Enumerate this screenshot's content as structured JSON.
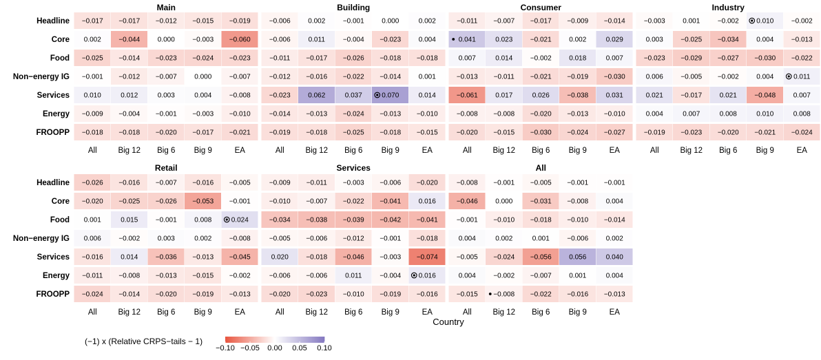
{
  "chart_data": {
    "type": "heatmap",
    "xlabel": "Country",
    "rows": [
      "Headline",
      "Core",
      "Food",
      "Non−energy IG",
      "Services",
      "Energy",
      "FROOPP"
    ],
    "columns": [
      "All",
      "Big 12",
      "Big 6",
      "Big 9",
      "EA"
    ],
    "panels": [
      {
        "title": "Main",
        "values": [
          [
            "−0.017",
            "−0.017",
            "−0.012",
            "−0.015",
            "−0.019"
          ],
          [
            "0.002",
            "−0.044",
            "0.000",
            "−0.003",
            "−0.060"
          ],
          [
            "−0.025",
            "−0.014",
            "−0.023",
            "−0.024",
            "−0.023"
          ],
          [
            "−0.001",
            "−0.012",
            "−0.007",
            "0.000",
            "−0.007"
          ],
          [
            "0.010",
            "0.012",
            "0.003",
            "0.004",
            "−0.008"
          ],
          [
            "−0.009",
            "−0.004",
            "−0.001",
            "−0.003",
            "−0.010"
          ],
          [
            "−0.018",
            "−0.018",
            "−0.020",
            "−0.017",
            "−0.021"
          ]
        ],
        "marks": []
      },
      {
        "title": "Building",
        "values": [
          [
            "−0.006",
            "0.002",
            "−0.001",
            "0.000",
            "0.002"
          ],
          [
            "−0.006",
            "0.011",
            "−0.004",
            "−0.023",
            "0.004"
          ],
          [
            "−0.011",
            "−0.017",
            "−0.026",
            "−0.018",
            "−0.018"
          ],
          [
            "−0.012",
            "−0.016",
            "−0.022",
            "−0.014",
            "0.001"
          ],
          [
            "−0.023",
            "0.062",
            "0.037",
            "0.070",
            "0.014"
          ],
          [
            "−0.014",
            "−0.013",
            "−0.024",
            "−0.013",
            "−0.010"
          ],
          [
            "−0.019",
            "−0.018",
            "−0.025",
            "−0.018",
            "−0.015"
          ]
        ],
        "marks": [
          {
            "row": 4,
            "col": 3,
            "symbol": "ring"
          }
        ]
      },
      {
        "title": "Consumer",
        "values": [
          [
            "−0.011",
            "−0.007",
            "−0.017",
            "−0.009",
            "−0.014"
          ],
          [
            "0.041",
            "0.023",
            "−0.021",
            "0.002",
            "0.029"
          ],
          [
            "0.007",
            "0.014",
            "−0.002",
            "0.018",
            "0.007"
          ],
          [
            "−0.013",
            "−0.011",
            "−0.021",
            "−0.019",
            "−0.030"
          ],
          [
            "−0.061",
            "0.017",
            "0.026",
            "−0.038",
            "0.031"
          ],
          [
            "−0.008",
            "−0.008",
            "−0.020",
            "−0.013",
            "−0.010"
          ],
          [
            "−0.020",
            "−0.015",
            "−0.030",
            "−0.024",
            "−0.027"
          ]
        ],
        "marks": [
          {
            "row": 1,
            "col": 0,
            "symbol": "dot"
          }
        ]
      },
      {
        "title": "Industry",
        "values": [
          [
            "−0.003",
            "0.001",
            "−0.002",
            "0.010",
            "−0.002"
          ],
          [
            "0.003",
            "−0.025",
            "−0.034",
            "0.004",
            "−0.013"
          ],
          [
            "−0.023",
            "−0.029",
            "−0.027",
            "−0.030",
            "−0.022"
          ],
          [
            "0.006",
            "−0.005",
            "−0.002",
            "0.004",
            "0.011"
          ],
          [
            "0.021",
            "−0.017",
            "0.021",
            "−0.048",
            "0.007"
          ],
          [
            "0.004",
            "0.007",
            "0.008",
            "0.010",
            "0.008"
          ],
          [
            "−0.019",
            "−0.023",
            "−0.020",
            "−0.021",
            "−0.024"
          ]
        ],
        "marks": [
          {
            "row": 0,
            "col": 3,
            "symbol": "ring"
          },
          {
            "row": 3,
            "col": 4,
            "symbol": "ring"
          }
        ]
      },
      {
        "title": "Retail",
        "values": [
          [
            "−0.026",
            "−0.016",
            "−0.007",
            "−0.016",
            "−0.005"
          ],
          [
            "−0.020",
            "−0.025",
            "−0.026",
            "−0.053",
            "−0.001"
          ],
          [
            "0.001",
            "0.015",
            "−0.001",
            "0.008",
            "0.024"
          ],
          [
            "0.006",
            "−0.002",
            "0.003",
            "0.002",
            "−0.008"
          ],
          [
            "−0.016",
            "0.014",
            "−0.036",
            "−0.013",
            "−0.045"
          ],
          [
            "−0.011",
            "−0.008",
            "−0.013",
            "−0.015",
            "−0.002"
          ],
          [
            "−0.024",
            "−0.014",
            "−0.020",
            "−0.019",
            "−0.013"
          ]
        ],
        "marks": [
          {
            "row": 2,
            "col": 4,
            "symbol": "ring"
          }
        ]
      },
      {
        "title": "Services",
        "values": [
          [
            "−0.009",
            "−0.011",
            "−0.003",
            "−0.006",
            "−0.020"
          ],
          [
            "−0.010",
            "−0.007",
            "−0.022",
            "−0.041",
            "0.016"
          ],
          [
            "−0.034",
            "−0.038",
            "−0.039",
            "−0.042",
            "−0.041"
          ],
          [
            "−0.005",
            "−0.006",
            "−0.012",
            "−0.001",
            "−0.018"
          ],
          [
            "0.020",
            "−0.018",
            "−0.046",
            "−0.003",
            "−0.074"
          ],
          [
            "−0.006",
            "−0.006",
            "0.011",
            "−0.004",
            "0.016"
          ],
          [
            "−0.020",
            "−0.023",
            "−0.010",
            "−0.019",
            "−0.016"
          ]
        ],
        "marks": [
          {
            "row": 5,
            "col": 4,
            "symbol": "ring"
          }
        ]
      },
      {
        "title": "All",
        "values": [
          [
            "−0.008",
            "−0.001",
            "−0.005",
            "−0.001",
            "−0.001"
          ],
          [
            "−0.046",
            "0.000",
            "−0.031",
            "−0.008",
            "0.004"
          ],
          [
            "−0.001",
            "−0.010",
            "−0.018",
            "−0.010",
            "−0.014"
          ],
          [
            "0.004",
            "0.002",
            "0.001",
            "−0.006",
            "0.002"
          ],
          [
            "−0.005",
            "−0.024",
            "−0.056",
            "0.056",
            "0.040"
          ],
          [
            "0.004",
            "−0.002",
            "−0.007",
            "0.001",
            "0.004"
          ],
          [
            "−0.015",
            "−0.008",
            "−0.022",
            "−0.016",
            "−0.013"
          ]
        ],
        "marks": [
          {
            "row": 6,
            "col": 1,
            "symbol": "dot"
          }
        ]
      }
    ],
    "legend": {
      "title": "(−1) x (Relative CRPS−tails − 1)",
      "ticks": [
        "−0.10",
        "−0.05",
        "0.00",
        "0.05",
        "0.10"
      ],
      "range": [
        -0.1,
        0.1
      ],
      "placement": "bottom-left"
    },
    "colors": {
      "negative": "#e8553f",
      "zero": "#ffffff",
      "positive": "#8478c0"
    }
  }
}
